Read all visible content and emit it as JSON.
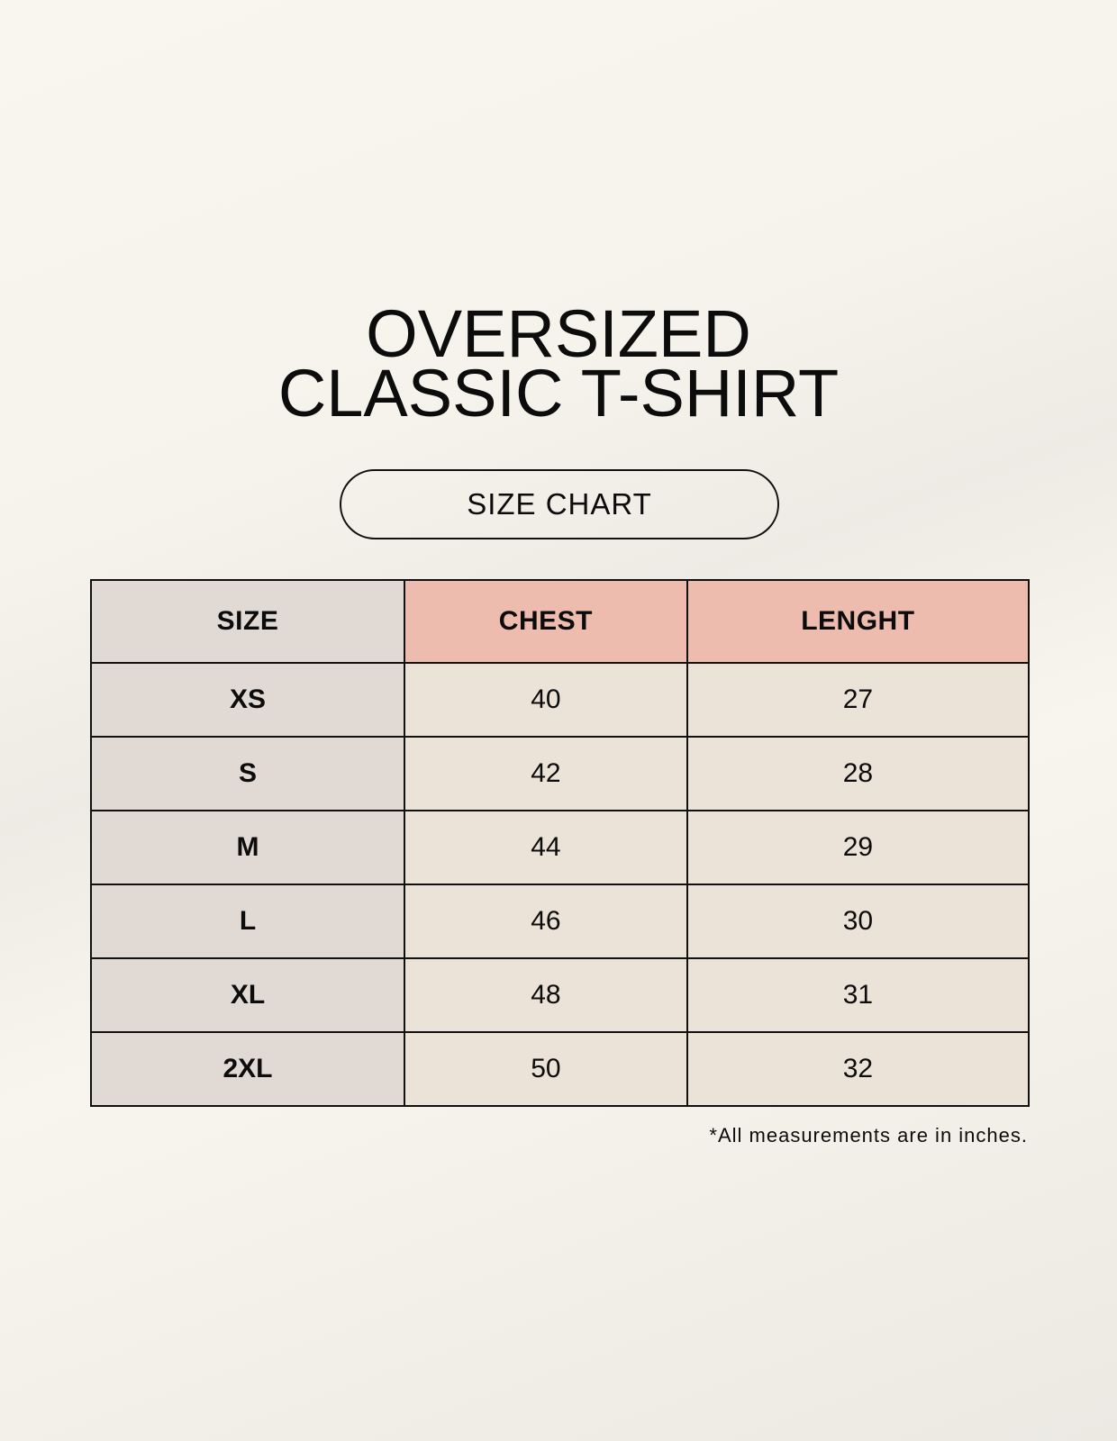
{
  "title": {
    "line1": "OVERSIZED",
    "line2": "CLASSIC T-SHIRT"
  },
  "badge": "SIZE CHART",
  "table": {
    "headers": [
      "SIZE",
      "CHEST",
      "LENGHT"
    ],
    "rows": [
      [
        "XS",
        "40",
        "27"
      ],
      [
        "S",
        "42",
        "28"
      ],
      [
        "M",
        "44",
        "29"
      ],
      [
        "L",
        "46",
        "30"
      ],
      [
        "XL",
        "48",
        "31"
      ],
      [
        "2XL",
        "50",
        "32"
      ]
    ]
  },
  "note": "*All measurements are in inches.",
  "colors": {
    "size_column": "#e1d9d3",
    "header_accent": "#eebcaf",
    "value_cells": "#ebe2d8"
  }
}
